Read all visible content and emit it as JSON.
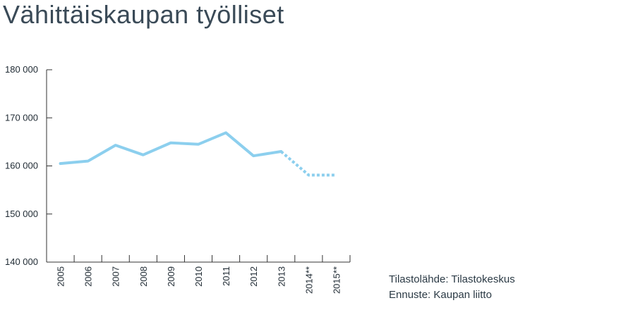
{
  "title": "Vähittäiskaupan työlliset",
  "source_lines": [
    "Tilastolähde: Tilastokeskus",
    "Ennuste: Kaupan liitto"
  ],
  "chart_data": {
    "type": "line",
    "title": "Vähittäiskaupan työlliset",
    "xlabel": "",
    "ylabel": "",
    "categories": [
      "2005",
      "2006",
      "2007",
      "2008",
      "2009",
      "2010",
      "2011",
      "2012",
      "2013",
      "2014**",
      "2015**"
    ],
    "ylim": [
      140000,
      180000
    ],
    "yticks": [
      140000,
      150000,
      160000,
      170000,
      180000
    ],
    "ytick_labels": [
      "140 000",
      "150 000",
      "160 000",
      "170 000",
      "180 000"
    ],
    "grid": false,
    "series": [
      {
        "values": [
          160500,
          161000,
          164300,
          162300,
          164800,
          164500,
          166900,
          162100,
          163000,
          158100,
          158100
        ],
        "forecast_from_index": 8,
        "color": "#8ccfee"
      }
    ]
  }
}
